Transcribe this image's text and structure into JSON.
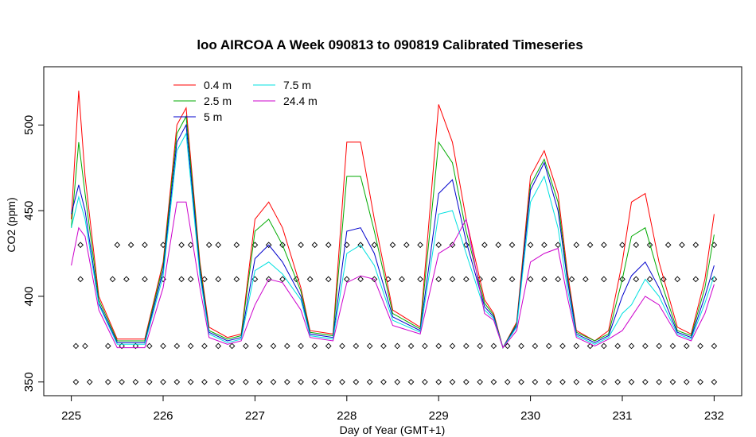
{
  "chart_data": {
    "type": "line",
    "title": "loo AIRCOA A  Week 090813 to 090819  Calibrated Timeseries",
    "xlabel": "Day of Year (GMT+1)",
    "ylabel": "CO2 (ppm)",
    "xlim": [
      224.7,
      232.3
    ],
    "ylim": [
      342,
      534
    ],
    "xticks": [
      "225",
      "226",
      "227",
      "228",
      "229",
      "230",
      "231",
      "232"
    ],
    "yticks": [
      "350",
      "400",
      "450",
      "500"
    ],
    "legend_position": "top-left",
    "grid": false,
    "series": [
      {
        "name": "0.4 m",
        "color": "#ff0000",
        "x": [
          225.0,
          225.08,
          225.15,
          225.3,
          225.5,
          225.8,
          226.0,
          226.15,
          226.25,
          226.4,
          226.5,
          226.7,
          226.85,
          227.0,
          227.15,
          227.3,
          227.5,
          227.6,
          227.85,
          228.0,
          228.15,
          228.3,
          228.5,
          228.8,
          229.0,
          229.15,
          229.3,
          229.5,
          229.6,
          229.7,
          229.85,
          230.0,
          230.15,
          230.3,
          230.4,
          230.5,
          230.7,
          230.85,
          231.0,
          231.1,
          231.25,
          231.4,
          231.6,
          231.75,
          231.9,
          232.0
        ],
        "y": [
          445,
          520,
          470,
          400,
          375,
          375,
          420,
          500,
          510,
          420,
          382,
          376,
          378,
          445,
          455,
          440,
          405,
          380,
          378,
          490,
          490,
          445,
          392,
          382,
          512,
          490,
          445,
          398,
          390,
          370,
          385,
          470,
          485,
          460,
          415,
          380,
          374,
          380,
          420,
          455,
          460,
          420,
          382,
          378,
          410,
          448
        ]
      },
      {
        "name": "2.5 m",
        "color": "#00aa00",
        "x": [
          225.0,
          225.08,
          225.15,
          225.3,
          225.5,
          225.8,
          226.0,
          226.15,
          226.25,
          226.4,
          226.5,
          226.7,
          226.85,
          227.0,
          227.15,
          227.3,
          227.5,
          227.6,
          227.85,
          228.0,
          228.15,
          228.3,
          228.5,
          228.8,
          229.0,
          229.15,
          229.3,
          229.5,
          229.6,
          229.7,
          229.85,
          230.0,
          230.15,
          230.3,
          230.4,
          230.5,
          230.7,
          230.85,
          231.0,
          231.1,
          231.25,
          231.4,
          231.6,
          231.75,
          231.9,
          232.0
        ],
        "y": [
          440,
          490,
          460,
          398,
          374,
          374,
          418,
          495,
          505,
          418,
          380,
          375,
          377,
          438,
          445,
          430,
          403,
          379,
          377,
          470,
          470,
          438,
          390,
          381,
          490,
          478,
          438,
          396,
          389,
          370,
          384,
          465,
          480,
          455,
          412,
          379,
          374,
          378,
          410,
          435,
          440,
          412,
          380,
          377,
          405,
          436
        ]
      },
      {
        "name": "5 m",
        "color": "#0000cc",
        "x": [
          225.0,
          225.08,
          225.15,
          225.3,
          225.5,
          225.8,
          226.0,
          226.15,
          226.25,
          226.4,
          226.5,
          226.7,
          226.85,
          227.0,
          227.15,
          227.3,
          227.5,
          227.6,
          227.85,
          228.0,
          228.15,
          228.3,
          228.5,
          228.8,
          229.0,
          229.15,
          229.3,
          229.5,
          229.6,
          229.7,
          229.85,
          230.0,
          230.15,
          230.3,
          230.4,
          230.5,
          230.7,
          230.85,
          231.0,
          231.1,
          231.25,
          231.4,
          231.6,
          231.75,
          231.9,
          232.0
        ],
        "y": [
          448,
          465,
          450,
          396,
          373,
          373,
          415,
          490,
          500,
          415,
          379,
          374,
          376,
          422,
          430,
          420,
          400,
          378,
          376,
          438,
          440,
          425,
          388,
          380,
          460,
          468,
          432,
          394,
          388,
          370,
          383,
          462,
          478,
          450,
          410,
          378,
          373,
          377,
          400,
          412,
          420,
          405,
          379,
          376,
          400,
          418
        ]
      },
      {
        "name": "7.5 m",
        "color": "#00e0e0",
        "x": [
          225.0,
          225.08,
          225.15,
          225.3,
          225.5,
          225.8,
          226.0,
          226.15,
          226.25,
          226.4,
          226.5,
          226.7,
          226.85,
          227.0,
          227.15,
          227.3,
          227.5,
          227.6,
          227.85,
          228.0,
          228.15,
          228.3,
          228.5,
          228.8,
          229.0,
          229.15,
          229.3,
          229.5,
          229.6,
          229.7,
          229.85,
          230.0,
          230.15,
          230.3,
          230.4,
          230.5,
          230.7,
          230.85,
          231.0,
          231.1,
          231.25,
          231.4,
          231.6,
          231.75,
          231.9,
          232.0
        ],
        "y": [
          440,
          458,
          445,
          395,
          372,
          372,
          412,
          485,
          495,
          412,
          378,
          373,
          375,
          415,
          420,
          413,
          398,
          377,
          375,
          425,
          430,
          418,
          386,
          379,
          448,
          450,
          425,
          392,
          387,
          370,
          382,
          455,
          470,
          440,
          405,
          377,
          372,
          376,
          390,
          395,
          410,
          400,
          378,
          375,
          396,
          412
        ]
      },
      {
        "name": "24.4 m",
        "color": "#cc00cc",
        "x": [
          225.0,
          225.08,
          225.15,
          225.3,
          225.5,
          225.8,
          226.0,
          226.15,
          226.25,
          226.4,
          226.5,
          226.7,
          226.85,
          227.0,
          227.15,
          227.3,
          227.5,
          227.6,
          227.85,
          228.0,
          228.15,
          228.3,
          228.5,
          228.8,
          229.0,
          229.15,
          229.3,
          229.5,
          229.6,
          229.7,
          229.85,
          230.0,
          230.15,
          230.3,
          230.4,
          230.5,
          230.7,
          230.85,
          231.0,
          231.1,
          231.25,
          231.4,
          231.6,
          231.75,
          231.9,
          232.0
        ],
        "y": [
          418,
          440,
          435,
          392,
          370,
          370,
          405,
          455,
          455,
          405,
          376,
          372,
          374,
          395,
          410,
          408,
          392,
          376,
          374,
          408,
          412,
          410,
          383,
          378,
          425,
          430,
          445,
          390,
          386,
          370,
          380,
          420,
          425,
          428,
          400,
          376,
          371,
          375,
          380,
          388,
          400,
          395,
          377,
          374,
          390,
          407
        ]
      }
    ],
    "markers": {
      "symbol": "diamond",
      "rows": [
        {
          "y": 430,
          "x": [
            225.1,
            225.5,
            225.65,
            225.8,
            226.0,
            226.2,
            226.3,
            226.5,
            226.6,
            226.8,
            227.0,
            227.15,
            227.3,
            227.5,
            227.65,
            227.8,
            228.0,
            228.15,
            228.3,
            228.5,
            228.65,
            228.8,
            229.0,
            229.15,
            229.3,
            229.5,
            229.65,
            229.8,
            230.0,
            230.15,
            230.3,
            230.5,
            230.65,
            230.8,
            231.0,
            231.15,
            231.3,
            231.5,
            231.65,
            231.8,
            232.0
          ]
        },
        {
          "y": 410,
          "x": [
            225.1,
            225.45,
            225.6,
            225.8,
            226.0,
            226.2,
            226.3,
            226.45,
            226.6,
            226.8,
            227.0,
            227.15,
            227.3,
            227.45,
            227.6,
            227.8,
            228.0,
            228.15,
            228.3,
            228.45,
            228.6,
            228.8,
            229.0,
            229.15,
            229.3,
            229.45,
            229.6,
            229.8,
            230.0,
            230.15,
            230.3,
            230.45,
            230.6,
            230.8,
            231.0,
            231.15,
            231.3,
            231.45,
            231.6,
            231.8,
            232.0
          ]
        },
        {
          "y": 371,
          "x": [
            225.05,
            225.15,
            225.4,
            225.55,
            225.7,
            225.85,
            226.0,
            226.15,
            226.3,
            226.45,
            226.6,
            226.75,
            226.9,
            227.05,
            227.2,
            227.35,
            227.5,
            227.65,
            227.8,
            227.95,
            228.1,
            228.25,
            228.4,
            228.55,
            228.7,
            228.85,
            229.0,
            229.15,
            229.3,
            229.45,
            229.6,
            229.75,
            229.9,
            230.05,
            230.2,
            230.35,
            230.5,
            230.65,
            230.8,
            230.95,
            231.1,
            231.25,
            231.4,
            231.55,
            231.7,
            231.85,
            232.0
          ]
        },
        {
          "y": 350,
          "x": [
            225.05,
            225.2,
            225.4,
            225.55,
            225.7,
            225.85,
            226.0,
            226.15,
            226.3,
            226.45,
            226.6,
            226.75,
            226.9,
            227.05,
            227.2,
            227.35,
            227.5,
            227.65,
            227.8,
            227.95,
            228.1,
            228.25,
            228.4,
            228.55,
            228.7,
            228.85,
            229.0,
            229.15,
            229.3,
            229.45,
            229.6,
            229.75,
            229.9,
            230.05,
            230.2,
            230.35,
            230.5,
            230.65,
            230.8,
            230.95,
            231.1,
            231.25,
            231.4,
            231.55,
            231.7,
            231.85,
            232.0
          ]
        }
      ]
    }
  }
}
